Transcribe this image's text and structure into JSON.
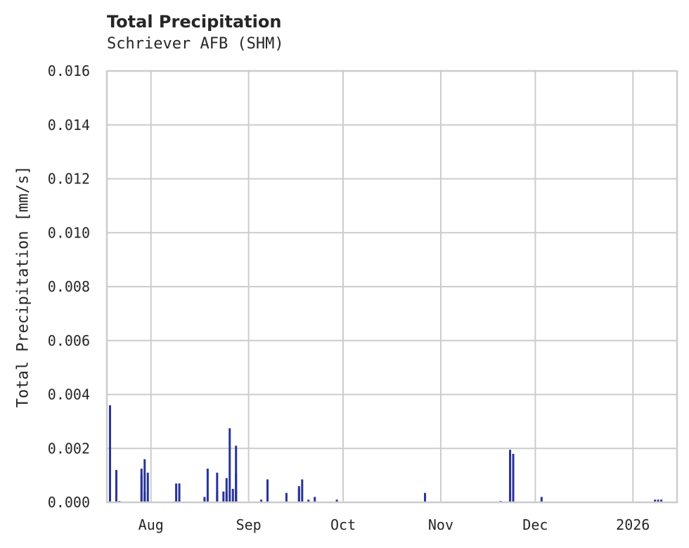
{
  "title": "Total Precipitation",
  "subtitle": "Schriever AFB (SHM)",
  "ylabel": "Total Precipitation [mm/s]",
  "y_ticks": [
    "0.000",
    "0.002",
    "0.004",
    "0.006",
    "0.008",
    "0.010",
    "0.012",
    "0.014",
    "0.016"
  ],
  "x_ticks": [
    "Aug",
    "Sep",
    "Oct",
    "Nov",
    "Dec",
    "2026"
  ],
  "colors": {
    "bar": "#27339a",
    "grid": "#cccccc",
    "text": "#262626"
  },
  "chart_data": {
    "type": "bar",
    "title": "Total Precipitation",
    "subtitle": "Schriever AFB (SHM)",
    "xlabel": "",
    "ylabel": "Total Precipitation [mm/s]",
    "ylim": [
      0,
      0.016
    ],
    "xlim": [
      "2025-07-18",
      "2026-01-15"
    ],
    "grid": true,
    "x_tick_labels": [
      "Aug",
      "Sep",
      "Oct",
      "Nov",
      "Dec",
      "2026"
    ],
    "y_tick_labels": [
      "0.000",
      "0.002",
      "0.004",
      "0.006",
      "0.008",
      "0.010",
      "0.012",
      "0.014",
      "0.016"
    ],
    "series": [
      {
        "name": "Total Precipitation",
        "points": [
          {
            "date": "2025-07-19",
            "value": 0.0036
          },
          {
            "date": "2025-07-21",
            "value": 0.0012
          },
          {
            "date": "2025-07-22",
            "value": 5e-05
          },
          {
            "date": "2025-07-29",
            "value": 0.001
          },
          {
            "date": "2025-07-29",
            "value": 0.00125
          },
          {
            "date": "2025-07-30",
            "value": 0.0016
          },
          {
            "date": "2025-07-30",
            "value": 0.0004
          },
          {
            "date": "2025-07-31",
            "value": 0.0011
          },
          {
            "date": "2025-08-09",
            "value": 0.0007
          },
          {
            "date": "2025-08-10",
            "value": 0.0007
          },
          {
            "date": "2025-08-10",
            "value": 5e-05
          },
          {
            "date": "2025-08-18",
            "value": 0.0002
          },
          {
            "date": "2025-08-19",
            "value": 0.00125
          },
          {
            "date": "2025-08-22",
            "value": 0.0011
          },
          {
            "date": "2025-08-22",
            "value": 0.0004
          },
          {
            "date": "2025-08-24",
            "value": 0.0004
          },
          {
            "date": "2025-08-25",
            "value": 0.0009
          },
          {
            "date": "2025-08-25",
            "value": 0.0004
          },
          {
            "date": "2025-08-26",
            "value": 0.00275
          },
          {
            "date": "2025-08-27",
            "value": 0.0005
          },
          {
            "date": "2025-08-28",
            "value": 0.0005
          },
          {
            "date": "2025-08-28",
            "value": 0.0011
          },
          {
            "date": "2025-08-28",
            "value": 0.0021
          },
          {
            "date": "2025-09-05",
            "value": 0.0001
          },
          {
            "date": "2025-09-07",
            "value": 0.00085
          },
          {
            "date": "2025-09-13",
            "value": 0.00035
          },
          {
            "date": "2025-09-17",
            "value": 0.0006
          },
          {
            "date": "2025-09-17",
            "value": 0.0005
          },
          {
            "date": "2025-09-18",
            "value": 0.00085
          },
          {
            "date": "2025-09-20",
            "value": 0.0001
          },
          {
            "date": "2025-09-22",
            "value": 0.0002
          },
          {
            "date": "2025-09-29",
            "value": 0.0001
          },
          {
            "date": "2025-10-27",
            "value": 0.00035
          },
          {
            "date": "2025-11-20",
            "value": 5e-05
          },
          {
            "date": "2025-11-23",
            "value": 0.0004
          },
          {
            "date": "2025-11-23",
            "value": 0.00195
          },
          {
            "date": "2025-11-24",
            "value": 0.0018
          },
          {
            "date": "2025-12-03",
            "value": 0.0002
          },
          {
            "date": "2026-01-08",
            "value": 0.0001
          },
          {
            "date": "2026-01-09",
            "value": 0.0001
          },
          {
            "date": "2026-01-10",
            "value": 0.0001
          }
        ]
      }
    ]
  }
}
